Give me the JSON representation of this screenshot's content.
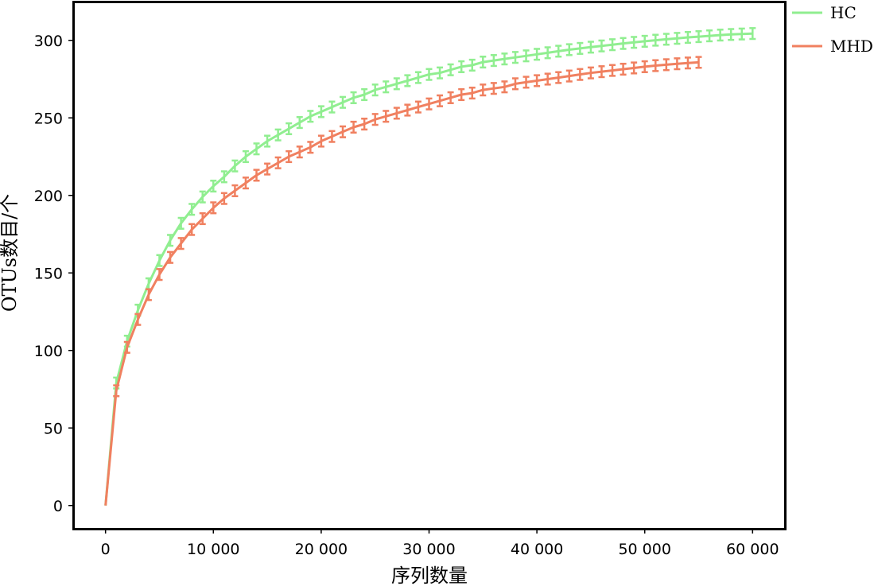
{
  "chart_data": {
    "type": "line",
    "title": "",
    "xlabel": "序列数量",
    "ylabel": "OTUs数目/个",
    "xlim": [
      -3000,
      63000
    ],
    "ylim": [
      -15,
      325
    ],
    "x_ticks": [
      0,
      10000,
      20000,
      30000,
      40000,
      50000,
      60000
    ],
    "x_tick_labels": [
      "0",
      "10 000",
      "20 000",
      "30 000",
      "40 000",
      "50 000",
      "60 000"
    ],
    "y_ticks": [
      0,
      50,
      100,
      150,
      200,
      250,
      300
    ],
    "y_tick_labels": [
      "0",
      "50",
      "100",
      "150",
      "200",
      "250",
      "300"
    ],
    "grid": false,
    "legend_position": "top-right",
    "series": [
      {
        "name": "HC",
        "color": "#90ee90",
        "x": [
          0,
          1000,
          2000,
          3000,
          4000,
          5000,
          6000,
          7000,
          8000,
          9000,
          10000,
          11000,
          12000,
          13000,
          14000,
          15000,
          16000,
          17000,
          18000,
          19000,
          20000,
          21000,
          22000,
          23000,
          24000,
          25000,
          26000,
          27000,
          28000,
          29000,
          30000,
          31000,
          32000,
          33000,
          34000,
          35000,
          36000,
          37000,
          38000,
          39000,
          40000,
          41000,
          42000,
          43000,
          44000,
          45000,
          46000,
          47000,
          48000,
          49000,
          50000,
          51000,
          52000,
          53000,
          54000,
          55000,
          56000,
          57000,
          58000,
          59000,
          60000
        ],
        "y": [
          0,
          79,
          106,
          126,
          143,
          158,
          171,
          182,
          191,
          199,
          206,
          212,
          219,
          225,
          230,
          235,
          239,
          243,
          247,
          251,
          254,
          257,
          260,
          263,
          265,
          268,
          270,
          272,
          274,
          276,
          278,
          279,
          281,
          283,
          284,
          286,
          287,
          288,
          289,
          290,
          291,
          292,
          293,
          294,
          294.8,
          295.6,
          296.4,
          297.2,
          298,
          298.7,
          299.4,
          300.1,
          300.7,
          301.3,
          301.9,
          302.4,
          302.9,
          303.4,
          303.8,
          304.1,
          304.4
        ],
        "error": 3.5
      },
      {
        "name": "MHD",
        "color": "#f08060",
        "x": [
          0,
          1000,
          2000,
          3000,
          4000,
          5000,
          6000,
          7000,
          8000,
          9000,
          10000,
          11000,
          12000,
          13000,
          14000,
          15000,
          16000,
          17000,
          18000,
          19000,
          20000,
          21000,
          22000,
          23000,
          24000,
          25000,
          26000,
          27000,
          28000,
          29000,
          30000,
          31000,
          32000,
          33000,
          34000,
          35000,
          36000,
          37000,
          38000,
          39000,
          40000,
          41000,
          42000,
          43000,
          44000,
          45000,
          46000,
          47000,
          48000,
          49000,
          50000,
          51000,
          52000,
          53000,
          54000,
          55000
        ],
        "y": [
          0,
          74,
          102,
          120,
          136,
          149,
          160,
          169,
          178,
          185,
          192,
          198,
          203,
          208,
          213,
          217,
          221,
          225,
          228,
          231,
          235,
          238,
          241,
          244,
          246,
          249,
          251,
          253,
          255,
          257,
          259,
          261,
          263,
          265,
          266,
          268,
          269,
          270,
          272,
          273,
          274,
          275,
          276,
          277,
          278,
          279,
          279.8,
          280.6,
          281.4,
          282.2,
          283,
          283.7,
          284.3,
          284.9,
          285.4,
          285.8
        ],
        "error": 3.5
      }
    ]
  }
}
